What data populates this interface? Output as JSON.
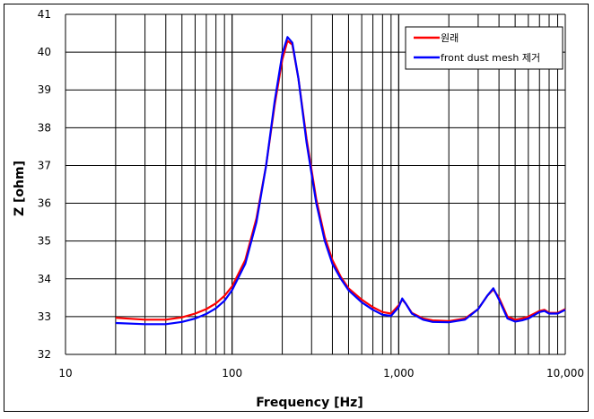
{
  "chart_data": {
    "type": "line",
    "title": "",
    "xlabel": "Frequency [Hz]",
    "ylabel": "Z [ohm]",
    "xscale": "log",
    "xlim": [
      10,
      10000
    ],
    "ylim": [
      32,
      41
    ],
    "x_tick_labels": [
      "10",
      "100",
      "1,000",
      "10,000"
    ],
    "y_tick_labels": [
      "32",
      "33",
      "34",
      "35",
      "36",
      "37",
      "38",
      "39",
      "40",
      "41"
    ],
    "grid": true,
    "legend_position": "upper right",
    "series": [
      {
        "name": "원래",
        "color": "#ff0000",
        "x": [
          20,
          30,
          40,
          50,
          60,
          70,
          80,
          90,
          100,
          120,
          140,
          160,
          180,
          200,
          215,
          230,
          250,
          280,
          320,
          360,
          400,
          450,
          500,
          600,
          700,
          800,
          900,
          1000,
          1050,
          1100,
          1200,
          1400,
          1600,
          2000,
          2500,
          3000,
          3400,
          3700,
          4000,
          4500,
          5000,
          5500,
          6000,
          7000,
          7500,
          8000,
          9000,
          10000
        ],
        "values": [
          32.97,
          32.92,
          32.92,
          32.98,
          33.08,
          33.2,
          33.35,
          33.55,
          33.8,
          34.5,
          35.6,
          37.0,
          38.6,
          39.8,
          40.3,
          40.2,
          39.3,
          37.7,
          36.1,
          35.1,
          34.5,
          34.05,
          33.75,
          33.45,
          33.25,
          33.12,
          33.08,
          33.3,
          33.45,
          33.35,
          33.1,
          32.95,
          32.9,
          32.88,
          32.95,
          33.2,
          33.55,
          33.72,
          33.5,
          33.0,
          32.92,
          32.95,
          33.0,
          33.15,
          33.18,
          33.1,
          33.1,
          33.2
        ]
      },
      {
        "name": "front dust mesh 제거",
        "color": "#0000ff",
        "x": [
          20,
          30,
          40,
          50,
          60,
          70,
          80,
          90,
          100,
          120,
          140,
          160,
          180,
          200,
          215,
          230,
          250,
          280,
          320,
          360,
          400,
          450,
          500,
          600,
          700,
          800,
          900,
          1000,
          1050,
          1100,
          1200,
          1400,
          1600,
          2000,
          2500,
          3000,
          3400,
          3700,
          4000,
          4500,
          5000,
          5500,
          6000,
          7000,
          7500,
          8000,
          9000,
          10000
        ],
        "values": [
          32.83,
          32.8,
          32.8,
          32.86,
          32.95,
          33.07,
          33.22,
          33.42,
          33.7,
          34.4,
          35.5,
          37.0,
          38.7,
          39.95,
          40.4,
          40.25,
          39.3,
          37.6,
          36.0,
          35.0,
          34.4,
          34.0,
          33.7,
          33.38,
          33.18,
          33.05,
          33.02,
          33.25,
          33.48,
          33.35,
          33.08,
          32.92,
          32.86,
          32.85,
          32.92,
          33.2,
          33.55,
          33.75,
          33.45,
          32.95,
          32.87,
          32.9,
          32.95,
          33.12,
          33.15,
          33.08,
          33.08,
          33.18
        ]
      }
    ]
  },
  "legend": {
    "items": [
      {
        "label": "원래",
        "color": "#ff0000"
      },
      {
        "label": "front dust mesh 제거",
        "color": "#0000ff"
      }
    ]
  },
  "axes": {
    "xlabel": "Frequency [Hz]",
    "ylabel": "Z [ohm]"
  }
}
